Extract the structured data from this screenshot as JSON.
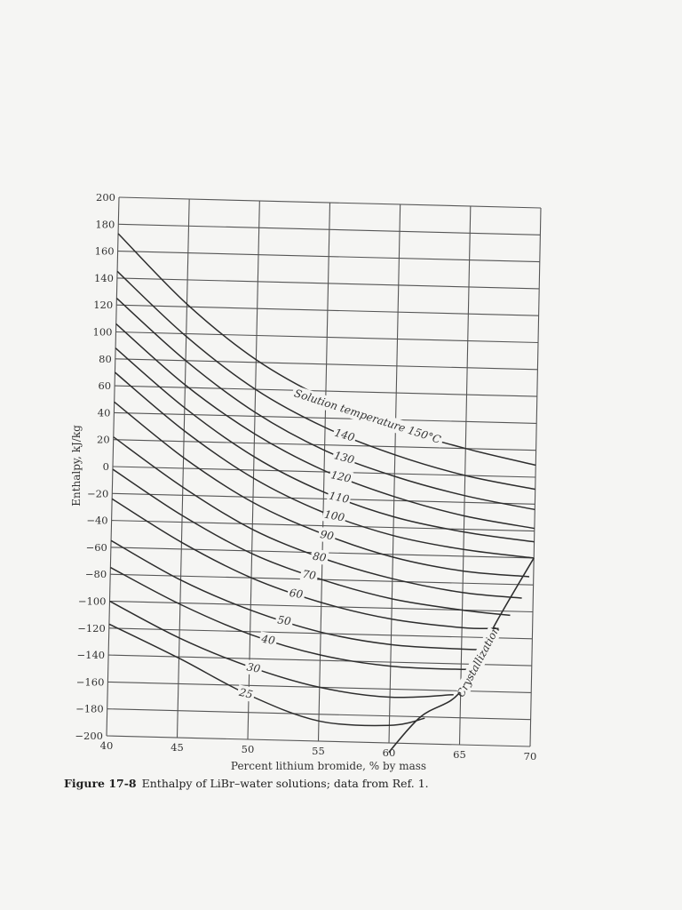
{
  "chart_data": {
    "type": "line",
    "xlabel": "Percent lithium bromide, % by mass",
    "ylabel": "Enthalpy, kJ/kg",
    "xlim": [
      40,
      70
    ],
    "ylim": [
      -200,
      200
    ],
    "x_ticks": [
      40,
      45,
      50,
      55,
      60,
      65,
      70
    ],
    "y_ticks": [
      200,
      180,
      160,
      140,
      120,
      100,
      80,
      60,
      40,
      20,
      0,
      -20,
      -40,
      -60,
      -80,
      -100,
      -120,
      -140,
      -160,
      -180,
      -200
    ],
    "grid": true,
    "label_prefix": "Solution temperature",
    "series": [
      {
        "name": "150°C",
        "x": [
          40,
          45,
          50,
          55,
          60,
          65,
          70
        ],
        "y": [
          173,
          122,
          82,
          54,
          34,
          20,
          9
        ]
      },
      {
        "name": "140",
        "x": [
          40,
          45,
          50,
          55,
          60,
          65,
          70
        ],
        "y": [
          145,
          98,
          60,
          33,
          14,
          0,
          -9
        ]
      },
      {
        "name": "130",
        "x": [
          40,
          45,
          50,
          55,
          60,
          65,
          70
        ],
        "y": [
          125,
          80,
          43,
          16,
          -2,
          -15,
          -24
        ]
      },
      {
        "name": "120",
        "x": [
          40,
          45,
          50,
          55,
          60,
          65,
          70
        ],
        "y": [
          106,
          62,
          27,
          1,
          -17,
          -30,
          -38
        ]
      },
      {
        "name": "110",
        "x": [
          40,
          45,
          50,
          55,
          60,
          65,
          70
        ],
        "y": [
          88,
          45,
          10,
          -15,
          -32,
          -42,
          -48
        ]
      },
      {
        "name": "100",
        "x": [
          40,
          45,
          50,
          55,
          60,
          65,
          70
        ],
        "y": [
          70,
          28,
          -6,
          -30,
          -46,
          -55,
          -60
        ]
      },
      {
        "name": "90",
        "x": [
          40,
          45,
          50,
          55,
          60,
          65,
          69.7
        ],
        "y": [
          48,
          8,
          -24,
          -46,
          -62,
          -71,
          -74
        ]
      },
      {
        "name": "80",
        "x": [
          40,
          45,
          50,
          55,
          60,
          65,
          69.2
        ],
        "y": [
          22,
          -14,
          -44,
          -64,
          -78,
          -87,
          -90
        ]
      },
      {
        "name": "70",
        "x": [
          40,
          45,
          50,
          55,
          60,
          65,
          68.4
        ],
        "y": [
          -2,
          -35,
          -62,
          -80,
          -93,
          -100,
          -103
        ]
      },
      {
        "name": "60",
        "x": [
          40,
          45,
          50,
          55,
          60,
          65,
          67.6
        ],
        "y": [
          -24,
          -55,
          -80,
          -97,
          -108,
          -113,
          -113
        ]
      },
      {
        "name": "50",
        "x": [
          40,
          45,
          50,
          55,
          60,
          65,
          66.8
        ],
        "y": [
          -55,
          -83,
          -104,
          -119,
          -127,
          -129,
          -129
        ]
      },
      {
        "name": "40",
        "x": [
          40,
          45,
          50,
          55,
          60,
          65,
          66.1
        ],
        "y": [
          -75,
          -101,
          -122,
          -136,
          -143,
          -144,
          -143
        ]
      },
      {
        "name": "30",
        "x": [
          40,
          45,
          50,
          55,
          60,
          64.5
        ],
        "y": [
          -100,
          -126,
          -146,
          -160,
          -166,
          -163
        ]
      },
      {
        "name": "25",
        "x": [
          40,
          45,
          50,
          55,
          60,
          62.5
        ],
        "y": [
          -117,
          -141,
          -167,
          -185,
          -187,
          -181
        ]
      }
    ],
    "crystallization_line": {
      "name": "Crystallization",
      "x": [
        60,
        62.2,
        64.6,
        66.2,
        67.1,
        70
      ],
      "y": [
        -207,
        -180,
        -165,
        -141,
        -115,
        -60
      ]
    }
  },
  "caption": {
    "number": "Figure 17-8",
    "text": "Enthalpy of LiBr–water solutions; data from Ref. 1."
  }
}
